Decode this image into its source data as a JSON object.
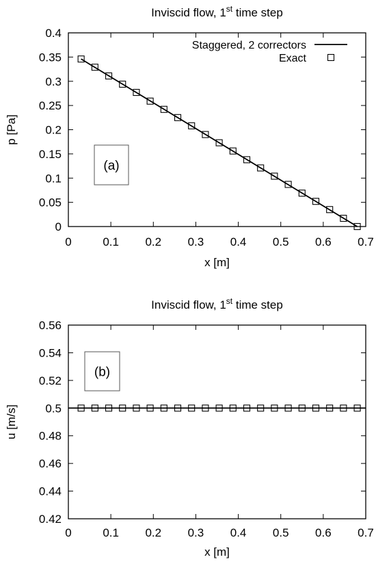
{
  "chart_data": [
    {
      "type": "line",
      "panel_label": "(a)",
      "title": {
        "prefix": "Inviscid flow, 1",
        "superscript": "st",
        "suffix": " time step"
      },
      "xlabel": "x [m]",
      "ylabel": "p [Pa]",
      "xlim": [
        0,
        0.7
      ],
      "ylim": [
        0,
        0.4
      ],
      "xticks": [
        "0",
        "0.1",
        "0.2",
        "0.3",
        "0.4",
        "0.5",
        "0.6",
        "0.7"
      ],
      "yticks": [
        "0",
        "0.05",
        "0.1",
        "0.15",
        "0.2",
        "0.25",
        "0.3",
        "0.35",
        "0.4"
      ],
      "grid": false,
      "legend_position": "top-right",
      "series": [
        {
          "name": "Staggered, 2 correctors",
          "style": "line",
          "color": "#000000",
          "x": [
            0.03,
            0.68
          ],
          "y": [
            0.346,
            0.0
          ]
        },
        {
          "name": "Exact",
          "style": "open-square-markers",
          "color": "#000000",
          "x": [
            0.03,
            0.0625,
            0.095,
            0.1275,
            0.16,
            0.1925,
            0.225,
            0.2575,
            0.29,
            0.3225,
            0.355,
            0.3875,
            0.42,
            0.4525,
            0.485,
            0.5175,
            0.55,
            0.5825,
            0.615,
            0.6475,
            0.68
          ],
          "y": [
            0.346,
            0.329,
            0.311,
            0.294,
            0.277,
            0.259,
            0.242,
            0.225,
            0.208,
            0.19,
            0.173,
            0.156,
            0.138,
            0.121,
            0.104,
            0.087,
            0.069,
            0.052,
            0.035,
            0.017,
            0.0
          ]
        }
      ]
    },
    {
      "type": "line",
      "panel_label": "(b)",
      "title": {
        "prefix": "Inviscid flow, 1",
        "superscript": "st",
        "suffix": " time step"
      },
      "xlabel": "x [m]",
      "ylabel": "u [m/s]",
      "xlim": [
        0,
        0.7
      ],
      "ylim": [
        0.42,
        0.56
      ],
      "xticks": [
        "0",
        "0.1",
        "0.2",
        "0.3",
        "0.4",
        "0.5",
        "0.6",
        "0.7"
      ],
      "yticks": [
        "0.42",
        "0.44",
        "0.46",
        "0.48",
        "0.5",
        "0.52",
        "0.54",
        "0.56"
      ],
      "grid": false,
      "legend_position": "none",
      "series": [
        {
          "style": "line",
          "color": "#000000",
          "x": [
            0,
            0.7
          ],
          "y": [
            0.5,
            0.5
          ]
        },
        {
          "style": "open-square-markers",
          "color": "#000000",
          "x": [
            0.03,
            0.0625,
            0.095,
            0.1275,
            0.16,
            0.1925,
            0.225,
            0.2575,
            0.29,
            0.3225,
            0.355,
            0.3875,
            0.42,
            0.4525,
            0.485,
            0.5175,
            0.55,
            0.5825,
            0.615,
            0.6475,
            0.68
          ],
          "y": [
            0.5,
            0.5,
            0.5,
            0.5,
            0.5,
            0.5,
            0.5,
            0.5,
            0.5,
            0.5,
            0.5,
            0.5,
            0.5,
            0.5,
            0.5,
            0.5,
            0.5,
            0.5,
            0.5,
            0.5,
            0.5
          ]
        }
      ]
    }
  ]
}
